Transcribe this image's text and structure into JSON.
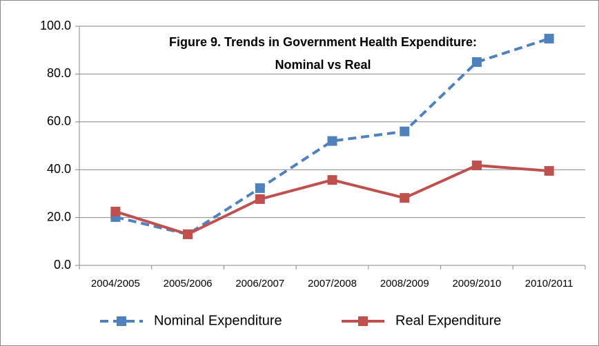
{
  "chart_data": {
    "type": "line",
    "title": [
      "Figure 9. Trends in Government Health Expenditure:",
      "Nominal vs Real"
    ],
    "categories": [
      "2004/2005",
      "2005/2006",
      "2006/2007",
      "2007/2008",
      "2008/2009",
      "2009/2010",
      "2010/2011"
    ],
    "series": [
      {
        "name": "Nominal Expenditure",
        "color": "#4f81bd",
        "dashed": true,
        "values": [
          20.2,
          13,
          32.3,
          52,
          56,
          85,
          94.8
        ]
      },
      {
        "name": "Real Expenditure",
        "color": "#c0504d",
        "dashed": false,
        "values": [
          22.5,
          13,
          27.7,
          35.7,
          28.2,
          41.8,
          39.5
        ]
      }
    ],
    "ylim": [
      0,
      100
    ],
    "yticks": [
      {
        "value": 0,
        "label": "0.0"
      },
      {
        "value": 20,
        "label": "20.0"
      },
      {
        "value": 40,
        "label": "40.0"
      },
      {
        "value": 60,
        "label": "60.0"
      },
      {
        "value": 80,
        "label": "80.0"
      },
      {
        "value": 100,
        "label": "100.0"
      }
    ],
    "grid": true,
    "legend": "bottom"
  }
}
